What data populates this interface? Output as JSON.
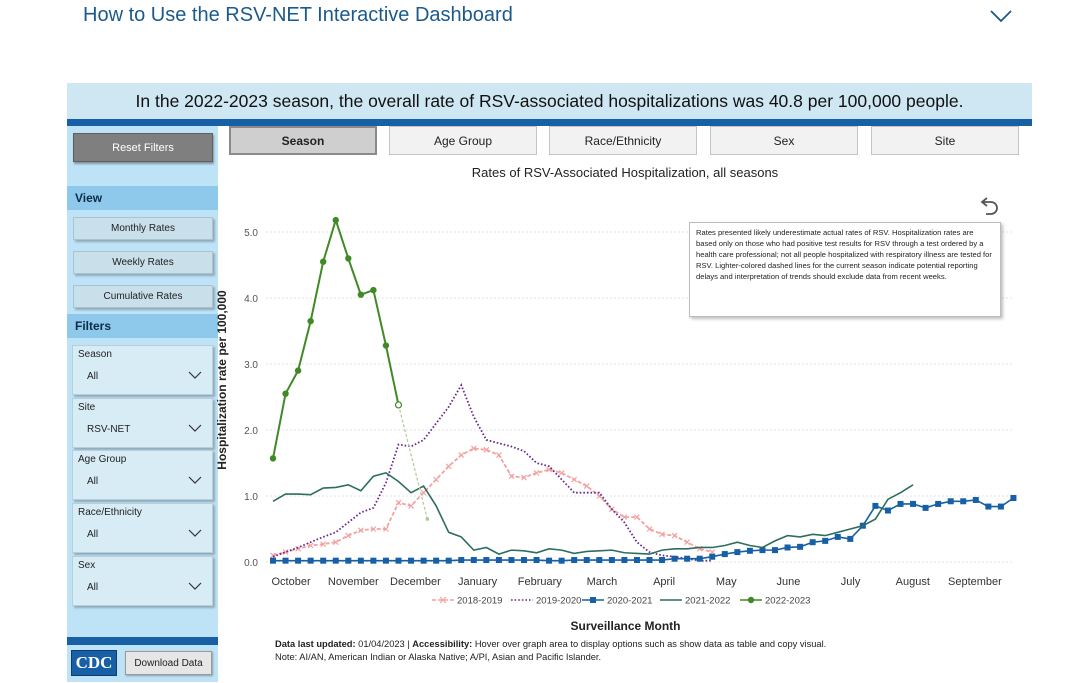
{
  "header": {
    "how_to_title": "How to Use the RSV-NET Interactive Dashboard"
  },
  "banner": {
    "text": "In the 2022-2023 season, the overall rate of RSV-associated hospitalizations was 40.8 per 100,000 people."
  },
  "sidebar": {
    "reset_label": "Reset Filters",
    "view_heading": "View",
    "view_buttons": [
      "Monthly Rates",
      "Weekly Rates",
      "Cumulative Rates"
    ],
    "filters_heading": "Filters",
    "filters": [
      {
        "label": "Season",
        "value": "All"
      },
      {
        "label": "Site",
        "value": "RSV-NET"
      },
      {
        "label": "Age Group",
        "value": "All"
      },
      {
        "label": "Race/Ethnicity",
        "value": "All"
      },
      {
        "label": "Sex",
        "value": "All"
      }
    ],
    "logo_text": "CDC",
    "download_label": "Download Data"
  },
  "tabs": [
    "Season",
    "Age Group",
    "Race/Ethnicity",
    "Sex",
    "Site"
  ],
  "active_tab": "Season",
  "note": "Rates presented likely underestimate actual rates of RSV. Hospitalization rates are based only on those who had positive test results for RSV through a test ordered by a health care professional; not all people hospitalized with respiratory illness are tested for RSV. Lighter-colored dashed lines for the current season indicate potential reporting delays and interpretation of trends should exclude data from recent weeks.",
  "footer": {
    "updated_label": "Data last updated:",
    "updated_value": " 01/04/2023 | ",
    "accessibility_label": "Accessibility:",
    "accessibility_text": " Hover over graph area to display options such as show data as table and copy visual.",
    "note": "Note: AI/AN, American Indian or Alaska Native; A/PI, Asian and Pacific Islander."
  },
  "colors": {
    "accent": "#1760a6",
    "sidebar": "#bfe3f6",
    "banner": "#cfe6f3"
  },
  "chart_data": {
    "type": "line",
    "title": "Rates of RSV-Associated Hospitalization, all seasons",
    "xlabel": "Surveillance Month",
    "ylabel": "Hospitalization rate per 100,000",
    "ylim": [
      0,
      5.2
    ],
    "yticks": [
      "0.0",
      "1.0",
      "2.0",
      "3.0",
      "4.0",
      "5.0"
    ],
    "months": [
      "October",
      "November",
      "December",
      "January",
      "February",
      "March",
      "April",
      "May",
      "June",
      "July",
      "August",
      "September"
    ],
    "legend_position": "bottom",
    "series": [
      {
        "name": "2018-2019",
        "color": "#f08c8c",
        "style": "dash-x",
        "values": [
          0.1,
          0.15,
          0.2,
          0.25,
          0.27,
          0.3,
          0.4,
          0.48,
          0.5,
          0.5,
          0.9,
          0.85,
          1.05,
          1.25,
          1.45,
          1.62,
          1.72,
          1.7,
          1.62,
          1.3,
          1.28,
          1.35,
          1.4,
          1.35,
          1.25,
          1.15,
          1.0,
          0.8,
          0.68,
          0.68,
          0.5,
          0.42,
          0.4,
          0.3,
          0.2,
          0.15
        ]
      },
      {
        "name": "2019-2020",
        "color": "#6a2a8c",
        "style": "dotted",
        "values": [
          0.08,
          0.15,
          0.22,
          0.3,
          0.38,
          0.45,
          0.6,
          0.75,
          0.82,
          1.2,
          1.78,
          1.75,
          1.85,
          2.1,
          2.35,
          2.68,
          2.2,
          1.85,
          1.8,
          1.75,
          1.68,
          1.5,
          1.45,
          1.25,
          1.05,
          1.05,
          1.05,
          0.8,
          0.6,
          0.3,
          0.15,
          0.1,
          0.08,
          0.05,
          0.02,
          0.02
        ]
      },
      {
        "name": "2020-2021",
        "color": "#1760a6",
        "style": "solid-square",
        "values": [
          0.02,
          0.02,
          0.02,
          0.02,
          0.02,
          0.02,
          0.02,
          0.02,
          0.02,
          0.02,
          0.02,
          0.02,
          0.02,
          0.02,
          0.02,
          0.03,
          0.03,
          0.03,
          0.03,
          0.03,
          0.03,
          0.03,
          0.02,
          0.02,
          0.03,
          0.03,
          0.03,
          0.03,
          0.03,
          0.03,
          0.03,
          0.03,
          0.05,
          0.05,
          0.05,
          0.08,
          0.12,
          0.15,
          0.17,
          0.18,
          0.18,
          0.22,
          0.23,
          0.3,
          0.32,
          0.38,
          0.35,
          0.55,
          0.85,
          0.78,
          0.88,
          0.88,
          0.82,
          0.88,
          0.92,
          0.92,
          0.94,
          0.84,
          0.84,
          0.97
        ]
      },
      {
        "name": "2021-2022",
        "color": "#2d6e5e",
        "style": "solid",
        "values": [
          0.92,
          1.03,
          1.03,
          1.02,
          1.12,
          1.13,
          1.17,
          1.08,
          1.3,
          1.35,
          1.22,
          1.05,
          1.15,
          0.85,
          0.45,
          0.38,
          0.18,
          0.22,
          0.12,
          0.18,
          0.17,
          0.14,
          0.2,
          0.18,
          0.13,
          0.16,
          0.17,
          0.18,
          0.14,
          0.13,
          0.12,
          0.18,
          0.2,
          0.2,
          0.22,
          0.22,
          0.25,
          0.3,
          0.25,
          0.22,
          0.32,
          0.4,
          0.38,
          0.42,
          0.4,
          0.45,
          0.5,
          0.55,
          0.65,
          0.95,
          1.05,
          1.17
        ]
      },
      {
        "name": "2022-2023",
        "color": "#3f8a26",
        "style": "solid-dot",
        "values": [
          1.57,
          2.55,
          2.9,
          3.65,
          4.55,
          5.18,
          4.6,
          4.05,
          4.12,
          3.28,
          2.38
        ],
        "provisional_values": [
          2.38,
          0.65
        ]
      }
    ]
  }
}
